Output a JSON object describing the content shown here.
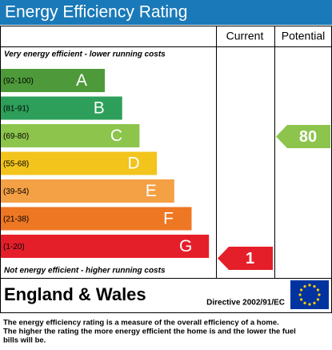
{
  "header": {
    "title": "Energy Efficiency Rating"
  },
  "columns": [
    "Current",
    "Potential"
  ],
  "top_note": "Very energy efficient - lower running costs",
  "bottom_note": "Not energy efficient - higher running costs",
  "bands": [
    {
      "range": "(92-100)",
      "letter": "A",
      "color": "#4e9a3a"
    },
    {
      "range": "(81-91)",
      "letter": "B",
      "color": "#2d9f5a"
    },
    {
      "range": "(69-80)",
      "letter": "C",
      "color": "#8cc44c"
    },
    {
      "range": "(55-68)",
      "letter": "D",
      "color": "#f2c41c"
    },
    {
      "range": "(39-54)",
      "letter": "E",
      "color": "#f4a044"
    },
    {
      "range": "(21-38)",
      "letter": "F",
      "color": "#ee7724"
    },
    {
      "range": "(1-20)",
      "letter": "G",
      "color": "#e51f2a"
    }
  ],
  "current": {
    "value": 1,
    "color": "#e51f2a"
  },
  "potential": {
    "value": 80,
    "color": "#8cc44c"
  },
  "region": "England & Wales",
  "directive": "Directive 2002/91/EC",
  "footer": [
    "The energy efficiency rating is a measure of the overall efficiency of a home.",
    "The higher the rating the more energy efficient the home is and the lower the fuel",
    "bills will be."
  ]
}
